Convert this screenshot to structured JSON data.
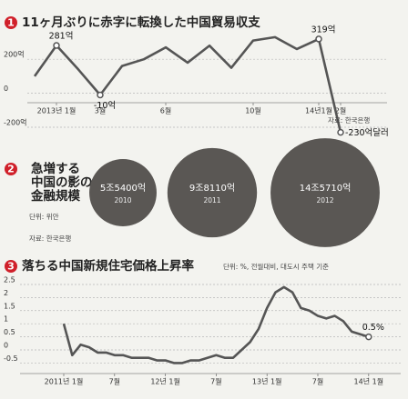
{
  "chart_data": [
    {
      "type": "line",
      "number": "1",
      "title": "11ヶ月ぶりに赤字に転換した中国貿易収支",
      "categories": [
        null,
        "2013년 1월",
        null,
        "3월",
        null,
        null,
        "6월",
        null,
        null,
        null,
        "10월",
        null,
        null,
        "14년1월",
        "2월"
      ],
      "values": [
        100,
        281,
        140,
        -10,
        160,
        200,
        270,
        180,
        280,
        150,
        310,
        330,
        260,
        319,
        -230
      ],
      "value_labels": [
        null,
        "281억",
        null,
        "-10억",
        null,
        null,
        null,
        null,
        null,
        null,
        null,
        null,
        null,
        "319억",
        "-230억달러"
      ],
      "ylim": [
        -260,
        340
      ],
      "yticks": [
        {
          "value": 200,
          "label": "200억"
        },
        0,
        {
          "value": -200,
          "label": "-200억"
        }
      ],
      "grid": true,
      "color": "#555555",
      "source": "자료: 한국은행"
    },
    {
      "type": "bubble",
      "number": "2",
      "title": [
        "急増する",
        "中国の影の",
        "金融規模"
      ],
      "categories": [
        "2010",
        "2011",
        "2012"
      ],
      "values": [
        55400,
        98110,
        145710
      ],
      "value_labels": [
        "5조5400억",
        "9조8110억",
        "14조5710억"
      ],
      "color": "#5a5754",
      "unit": "단위: 위안",
      "source": "자료: 한국은행"
    },
    {
      "type": "line",
      "number": "3",
      "title": "落ちる中国新規住宅価格上昇率",
      "subtitle": "단위: %, 전월대비, 대도시 주택 기준",
      "categories": [
        "2011년 1월",
        null,
        null,
        null,
        null,
        null,
        "7월",
        null,
        null,
        null,
        null,
        null,
        "12년 1월",
        null,
        null,
        null,
        null,
        null,
        "7월",
        null,
        null,
        null,
        null,
        null,
        "13년 1월",
        null,
        null,
        null,
        null,
        null,
        "7월",
        null,
        null,
        null,
        null,
        null,
        "14년 1월"
      ],
      "values": [
        1.0,
        -0.2,
        0.2,
        0.1,
        -0.1,
        -0.1,
        -0.2,
        -0.2,
        -0.3,
        -0.3,
        -0.3,
        -0.4,
        -0.4,
        -0.5,
        -0.5,
        -0.4,
        -0.4,
        -0.3,
        -0.2,
        -0.3,
        -0.3,
        0.0,
        0.3,
        0.8,
        1.6,
        2.2,
        2.4,
        2.2,
        1.6,
        1.5,
        1.3,
        1.2,
        1.3,
        1.1,
        0.7,
        0.6,
        0.5
      ],
      "value_labels": [
        null,
        null,
        null,
        null,
        null,
        null,
        null,
        null,
        null,
        null,
        null,
        null,
        null,
        null,
        null,
        null,
        null,
        null,
        null,
        null,
        null,
        null,
        null,
        null,
        null,
        null,
        null,
        null,
        null,
        null,
        null,
        null,
        null,
        null,
        null,
        null,
        "0.5%"
      ],
      "ylim": [
        -0.6,
        2.7
      ],
      "yticks": [
        2.5,
        2,
        1.5,
        1,
        0.5,
        0,
        -0.5
      ],
      "grid": true,
      "color": "#555555"
    }
  ]
}
